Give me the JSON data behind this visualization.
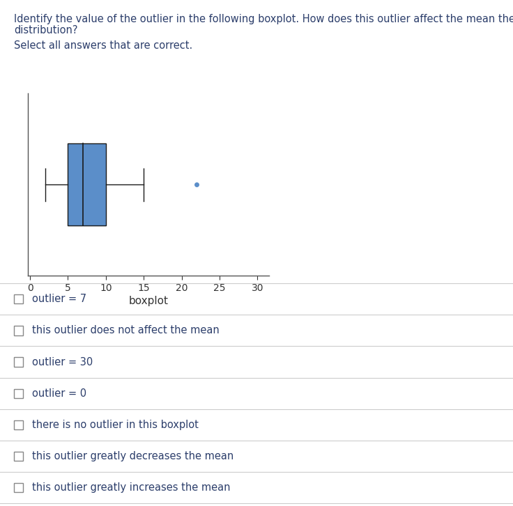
{
  "title_line1": "Identify the value of the outlier in the following boxplot. How does this outlier affect the mean the",
  "title_line2": "distribution?",
  "subtitle_text": "Select all answers that are correct.",
  "whisker_low": 2,
  "whisker_high": 15,
  "q1": 5,
  "median": 7,
  "q3": 10,
  "outlier": 22,
  "xlabel": "boxplot",
  "xlim": [
    -0.3,
    31.5
  ],
  "xticks": [
    0,
    5,
    10,
    15,
    20,
    25,
    30
  ],
  "box_color": "#5b8ec9",
  "box_edge_color": "#1a1a1a",
  "whisker_color": "#1a1a1a",
  "outlier_color": "#5b8ec9",
  "options": [
    "outlier = 7",
    "this outlier does not affect the mean",
    "outlier = 30",
    "outlier = 0",
    "there is no outlier in this boxplot",
    "this outlier greatly decreases the mean",
    "this outlier greatly increases the mean"
  ],
  "bg_color": "#ffffff",
  "text_color": "#2c3e6b",
  "axis_text_color": "#333333",
  "font_size_title": 10.5,
  "font_size_subtitle": 10.5,
  "font_size_options": 10.5,
  "font_size_axis": 10,
  "divider_color": "#cccccc",
  "spine_color": "#555555"
}
